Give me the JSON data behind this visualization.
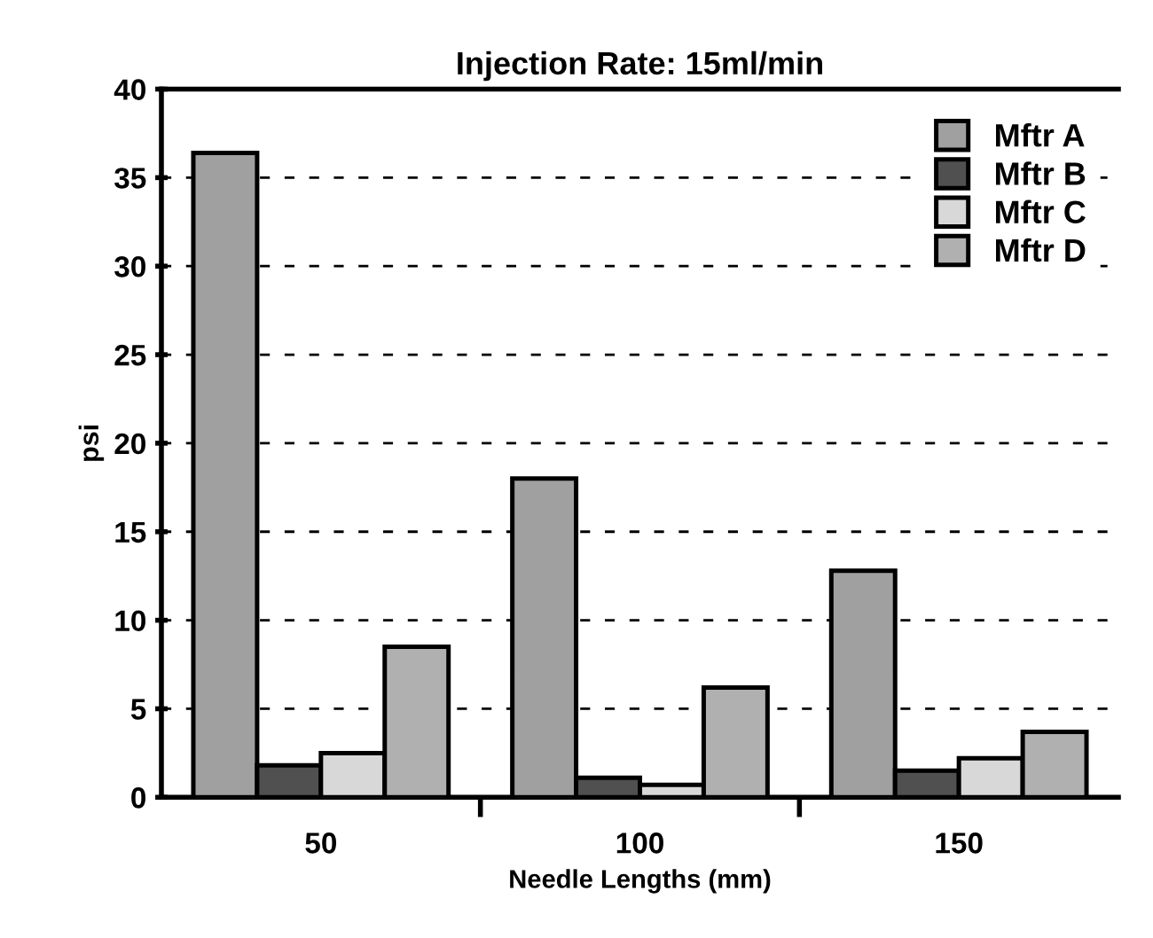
{
  "chart_data": {
    "type": "bar",
    "title": "Injection Rate: 15ml/min",
    "xlabel": "Needle Lengths (mm)",
    "ylabel": "psi",
    "categories": [
      "50",
      "100",
      "150"
    ],
    "series": [
      {
        "name": "Mftr A",
        "color": "#a0a0a0",
        "values": [
          36.4,
          18.0,
          12.8
        ]
      },
      {
        "name": "Mftr B",
        "color": "#505050",
        "values": [
          1.8,
          1.1,
          1.5
        ]
      },
      {
        "name": "Mftr C",
        "color": "#d8d8d8",
        "values": [
          2.5,
          0.7,
          2.2
        ]
      },
      {
        "name": "Mftr D",
        "color": "#b0b0b0",
        "values": [
          8.5,
          6.2,
          3.7
        ]
      }
    ],
    "ylim": [
      0,
      40
    ],
    "yticks": [
      0,
      5,
      10,
      15,
      20,
      25,
      30,
      35,
      40
    ],
    "grid": "y",
    "legend": "top right"
  }
}
